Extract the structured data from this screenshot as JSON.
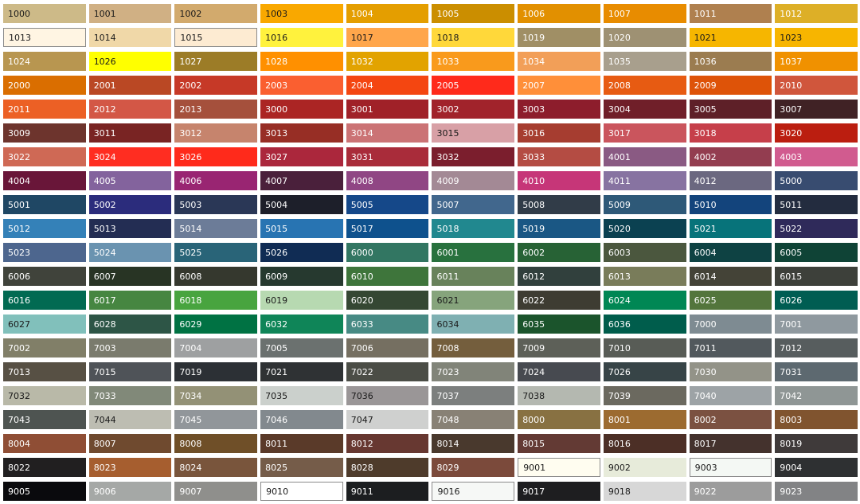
{
  "swatches": [
    {
      "code": "1000",
      "color": "#CDBA88",
      "text_color": "#1a1a1a"
    },
    {
      "code": "1001",
      "color": "#D0B084",
      "text_color": "#1a1a1a"
    },
    {
      "code": "1002",
      "color": "#D2AA6D",
      "text_color": "#1a1a1a"
    },
    {
      "code": "1003",
      "color": "#F9A800",
      "text_color": "#1a1a1a"
    },
    {
      "code": "1004",
      "color": "#E49E00",
      "text_color": "#ffffff"
    },
    {
      "code": "1005",
      "color": "#CB8E00",
      "text_color": "#ffffff"
    },
    {
      "code": "1006",
      "color": "#E29000",
      "text_color": "#ffffff"
    },
    {
      "code": "1007",
      "color": "#E88C00",
      "text_color": "#ffffff"
    },
    {
      "code": "1011",
      "color": "#AF804F",
      "text_color": "#ffffff"
    },
    {
      "code": "1012",
      "color": "#DDAF27",
      "text_color": "#ffffff"
    },
    {
      "code": "1013",
      "color": "#FFF5E3",
      "text_color": "#1a1a1a"
    },
    {
      "code": "1014",
      "color": "#F0D8A8",
      "text_color": "#1a1a1a"
    },
    {
      "code": "1015",
      "color": "#FDEBD2",
      "text_color": "#1a1a1a"
    },
    {
      "code": "1016",
      "color": "#FFF23D",
      "text_color": "#1a1a1a"
    },
    {
      "code": "1017",
      "color": "#FFA64B",
      "text_color": "#1a1a1a"
    },
    {
      "code": "1018",
      "color": "#FFD83A",
      "text_color": "#1a1a1a"
    },
    {
      "code": "1019",
      "color": "#A08F65",
      "text_color": "#ffffff"
    },
    {
      "code": "1020",
      "color": "#9E9173",
      "text_color": "#ffffff"
    },
    {
      "code": "1021",
      "color": "#F6B600",
      "text_color": "#1a1a1a"
    },
    {
      "code": "1023",
      "color": "#F7B500",
      "text_color": "#1a1a1a"
    },
    {
      "code": "1024",
      "color": "#B89650",
      "text_color": "#ffffff"
    },
    {
      "code": "1026",
      "color": "#FFFF00",
      "text_color": "#1a1a1a"
    },
    {
      "code": "1027",
      "color": "#9C7C27",
      "text_color": "#ffffff"
    },
    {
      "code": "1028",
      "color": "#FF9000",
      "text_color": "#ffffff"
    },
    {
      "code": "1032",
      "color": "#E2A300",
      "text_color": "#ffffff"
    },
    {
      "code": "1033",
      "color": "#F99A1C",
      "text_color": "#ffffff"
    },
    {
      "code": "1034",
      "color": "#F29F58",
      "text_color": "#ffffff"
    },
    {
      "code": "1035",
      "color": "#A89F8D",
      "text_color": "#ffffff"
    },
    {
      "code": "1036",
      "color": "#9B7C50",
      "text_color": "#ffffff"
    },
    {
      "code": "1037",
      "color": "#F09100",
      "text_color": "#ffffff"
    },
    {
      "code": "2000",
      "color": "#DA6E00",
      "text_color": "#ffffff"
    },
    {
      "code": "2001",
      "color": "#BA4824",
      "text_color": "#ffffff"
    },
    {
      "code": "2002",
      "color": "#C63927",
      "text_color": "#ffffff"
    },
    {
      "code": "2003",
      "color": "#FA5F30",
      "text_color": "#ffffff"
    },
    {
      "code": "2004",
      "color": "#F44611",
      "text_color": "#ffffff"
    },
    {
      "code": "2005",
      "color": "#FF2A1B",
      "text_color": "#ffffff"
    },
    {
      "code": "2007",
      "color": "#FF8F39",
      "text_color": "#ffffff"
    },
    {
      "code": "2008",
      "color": "#E75B12",
      "text_color": "#ffffff"
    },
    {
      "code": "2009",
      "color": "#DE5308",
      "text_color": "#ffffff"
    },
    {
      "code": "2010",
      "color": "#D0563C",
      "text_color": "#ffffff"
    },
    {
      "code": "2011",
      "color": "#EC6025",
      "text_color": "#ffffff"
    },
    {
      "code": "2012",
      "color": "#D35746",
      "text_color": "#ffffff"
    },
    {
      "code": "2013",
      "color": "#A5503C",
      "text_color": "#ffffff"
    },
    {
      "code": "3000",
      "color": "#AB2524",
      "text_color": "#ffffff"
    },
    {
      "code": "3001",
      "color": "#A02128",
      "text_color": "#ffffff"
    },
    {
      "code": "3002",
      "color": "#A1232B",
      "text_color": "#ffffff"
    },
    {
      "code": "3003",
      "color": "#8D1D2C",
      "text_color": "#ffffff"
    },
    {
      "code": "3004",
      "color": "#701F29",
      "text_color": "#ffffff"
    },
    {
      "code": "3005",
      "color": "#5E2028",
      "text_color": "#ffffff"
    },
    {
      "code": "3007",
      "color": "#402225",
      "text_color": "#ffffff"
    },
    {
      "code": "3009",
      "color": "#6D342D",
      "text_color": "#ffffff"
    },
    {
      "code": "3011",
      "color": "#792423",
      "text_color": "#ffffff"
    },
    {
      "code": "3012",
      "color": "#C6846D",
      "text_color": "#ffffff"
    },
    {
      "code": "3013",
      "color": "#972E25",
      "text_color": "#ffffff"
    },
    {
      "code": "3014",
      "color": "#CB7375",
      "text_color": "#ffffff"
    },
    {
      "code": "3015",
      "color": "#D8A0A6",
      "text_color": "#1a1a1a"
    },
    {
      "code": "3016",
      "color": "#A63D30",
      "text_color": "#ffffff"
    },
    {
      "code": "3017",
      "color": "#CA555D",
      "text_color": "#ffffff"
    },
    {
      "code": "3018",
      "color": "#C63F4A",
      "text_color": "#ffffff"
    },
    {
      "code": "3020",
      "color": "#BB1E10",
      "text_color": "#ffffff"
    },
    {
      "code": "3022",
      "color": "#CF6955",
      "text_color": "#ffffff"
    },
    {
      "code": "3024",
      "color": "#FF2D21",
      "text_color": "#ffffff"
    },
    {
      "code": "3026",
      "color": "#FF2A1B",
      "text_color": "#ffffff"
    },
    {
      "code": "3027",
      "color": "#AB273C",
      "text_color": "#ffffff"
    },
    {
      "code": "3031",
      "color": "#A92C3A",
      "text_color": "#ffffff"
    },
    {
      "code": "3032",
      "color": "#7B1E2D",
      "text_color": "#ffffff"
    },
    {
      "code": "3033",
      "color": "#B44C43",
      "text_color": "#ffffff"
    },
    {
      "code": "4001",
      "color": "#8A5A83",
      "text_color": "#ffffff"
    },
    {
      "code": "4002",
      "color": "#933D50",
      "text_color": "#ffffff"
    },
    {
      "code": "4003",
      "color": "#D15B8F",
      "text_color": "#ffffff"
    },
    {
      "code": "4004",
      "color": "#691639",
      "text_color": "#ffffff"
    },
    {
      "code": "4005",
      "color": "#83639D",
      "text_color": "#ffffff"
    },
    {
      "code": "4006",
      "color": "#992572",
      "text_color": "#ffffff"
    },
    {
      "code": "4007",
      "color": "#4A203B",
      "text_color": "#ffffff"
    },
    {
      "code": "4008",
      "color": "#904684",
      "text_color": "#ffffff"
    },
    {
      "code": "4009",
      "color": "#A38995",
      "text_color": "#ffffff"
    },
    {
      "code": "4010",
      "color": "#C63678",
      "text_color": "#ffffff"
    },
    {
      "code": "4011",
      "color": "#8773A1",
      "text_color": "#ffffff"
    },
    {
      "code": "4012",
      "color": "#6B6880",
      "text_color": "#ffffff"
    },
    {
      "code": "5000",
      "color": "#384C70",
      "text_color": "#ffffff"
    },
    {
      "code": "5001",
      "color": "#1F4764",
      "text_color": "#ffffff"
    },
    {
      "code": "5002",
      "color": "#2B2C7C",
      "text_color": "#ffffff"
    },
    {
      "code": "5003",
      "color": "#2A3756",
      "text_color": "#ffffff"
    },
    {
      "code": "5004",
      "color": "#1D1F2A",
      "text_color": "#ffffff"
    },
    {
      "code": "5005",
      "color": "#154889",
      "text_color": "#ffffff"
    },
    {
      "code": "5007",
      "color": "#41678D",
      "text_color": "#ffffff"
    },
    {
      "code": "5008",
      "color": "#313C48",
      "text_color": "#ffffff"
    },
    {
      "code": "5009",
      "color": "#2E5978",
      "text_color": "#ffffff"
    },
    {
      "code": "5010",
      "color": "#13447C",
      "text_color": "#ffffff"
    },
    {
      "code": "5011",
      "color": "#232C3F",
      "text_color": "#ffffff"
    },
    {
      "code": "5012",
      "color": "#3481B8",
      "text_color": "#ffffff"
    },
    {
      "code": "5013",
      "color": "#232D53",
      "text_color": "#ffffff"
    },
    {
      "code": "5014",
      "color": "#6C7C98",
      "text_color": "#ffffff"
    },
    {
      "code": "5015",
      "color": "#2874B2",
      "text_color": "#ffffff"
    },
    {
      "code": "5017",
      "color": "#0E518D",
      "text_color": "#ffffff"
    },
    {
      "code": "5018",
      "color": "#21888F",
      "text_color": "#ffffff"
    },
    {
      "code": "5019",
      "color": "#1A5784",
      "text_color": "#ffffff"
    },
    {
      "code": "5020",
      "color": "#0B4151",
      "text_color": "#ffffff"
    },
    {
      "code": "5021",
      "color": "#07737A",
      "text_color": "#ffffff"
    },
    {
      "code": "5022",
      "color": "#2F2A5A",
      "text_color": "#ffffff"
    },
    {
      "code": "5023",
      "color": "#4D668E",
      "text_color": "#ffffff"
    },
    {
      "code": "5024",
      "color": "#6A93B0",
      "text_color": "#ffffff"
    },
    {
      "code": "5025",
      "color": "#296478",
      "text_color": "#ffffff"
    },
    {
      "code": "5026",
      "color": "#102C54",
      "text_color": "#ffffff"
    },
    {
      "code": "6000",
      "color": "#327662",
      "text_color": "#ffffff"
    },
    {
      "code": "6001",
      "color": "#28713E",
      "text_color": "#ffffff"
    },
    {
      "code": "6002",
      "color": "#276235",
      "text_color": "#ffffff"
    },
    {
      "code": "6003",
      "color": "#4B573E",
      "text_color": "#ffffff"
    },
    {
      "code": "6004",
      "color": "#0E4243",
      "text_color": "#ffffff"
    },
    {
      "code": "6005",
      "color": "#0F4336",
      "text_color": "#ffffff"
    },
    {
      "code": "6006",
      "color": "#40433B",
      "text_color": "#ffffff"
    },
    {
      "code": "6007",
      "color": "#283424",
      "text_color": "#ffffff"
    },
    {
      "code": "6008",
      "color": "#35382E",
      "text_color": "#ffffff"
    },
    {
      "code": "6009",
      "color": "#26392F",
      "text_color": "#ffffff"
    },
    {
      "code": "6010",
      "color": "#3E753B",
      "text_color": "#ffffff"
    },
    {
      "code": "6011",
      "color": "#68825B",
      "text_color": "#ffffff"
    },
    {
      "code": "6012",
      "color": "#31403D",
      "text_color": "#ffffff"
    },
    {
      "code": "6013",
      "color": "#797C5A",
      "text_color": "#ffffff"
    },
    {
      "code": "6014",
      "color": "#444337",
      "text_color": "#ffffff"
    },
    {
      "code": "6015",
      "color": "#3D403A",
      "text_color": "#ffffff"
    },
    {
      "code": "6016",
      "color": "#026A52",
      "text_color": "#ffffff"
    },
    {
      "code": "6017",
      "color": "#468641",
      "text_color": "#ffffff"
    },
    {
      "code": "6018",
      "color": "#48A43F",
      "text_color": "#ffffff"
    },
    {
      "code": "6019",
      "color": "#B7D9B1",
      "text_color": "#1a1a1a"
    },
    {
      "code": "6020",
      "color": "#354733",
      "text_color": "#ffffff"
    },
    {
      "code": "6021",
      "color": "#86A47C",
      "text_color": "#1a1a1a"
    },
    {
      "code": "6022",
      "color": "#3E3C32",
      "text_color": "#ffffff"
    },
    {
      "code": "6024",
      "color": "#008754",
      "text_color": "#ffffff"
    },
    {
      "code": "6025",
      "color": "#53753C",
      "text_color": "#ffffff"
    },
    {
      "code": "6026",
      "color": "#005D52",
      "text_color": "#ffffff"
    },
    {
      "code": "6027",
      "color": "#81C0BB",
      "text_color": "#1a1a1a"
    },
    {
      "code": "6028",
      "color": "#2D5546",
      "text_color": "#ffffff"
    },
    {
      "code": "6029",
      "color": "#007243",
      "text_color": "#ffffff"
    },
    {
      "code": "6032",
      "color": "#0F8558",
      "text_color": "#ffffff"
    },
    {
      "code": "6033",
      "color": "#478A84",
      "text_color": "#ffffff"
    },
    {
      "code": "6034",
      "color": "#7FB0B2",
      "text_color": "#1a1a1a"
    },
    {
      "code": "6035",
      "color": "#1B542C",
      "text_color": "#ffffff"
    },
    {
      "code": "6036",
      "color": "#005D4C",
      "text_color": "#ffffff"
    },
    {
      "code": "7000",
      "color": "#7E8B92",
      "text_color": "#ffffff"
    },
    {
      "code": "7001",
      "color": "#8F999F",
      "text_color": "#ffffff"
    },
    {
      "code": "7002",
      "color": "#817F68",
      "text_color": "#ffffff"
    },
    {
      "code": "7003",
      "color": "#7A7B6D",
      "text_color": "#ffffff"
    },
    {
      "code": "7004",
      "color": "#9EA0A1",
      "text_color": "#ffffff"
    },
    {
      "code": "7005",
      "color": "#6B716F",
      "text_color": "#ffffff"
    },
    {
      "code": "7006",
      "color": "#756F61",
      "text_color": "#ffffff"
    },
    {
      "code": "7008",
      "color": "#745E3D",
      "text_color": "#ffffff"
    },
    {
      "code": "7009",
      "color": "#5D6058",
      "text_color": "#ffffff"
    },
    {
      "code": "7010",
      "color": "#585C56",
      "text_color": "#ffffff"
    },
    {
      "code": "7011",
      "color": "#52595D",
      "text_color": "#ffffff"
    },
    {
      "code": "7012",
      "color": "#575D5E",
      "text_color": "#ffffff"
    },
    {
      "code": "7013",
      "color": "#575044",
      "text_color": "#ffffff"
    },
    {
      "code": "7015",
      "color": "#4F5358",
      "text_color": "#ffffff"
    },
    {
      "code": "7019",
      "color": "#2C3035",
      "text_color": "#ffffff"
    },
    {
      "code": "7021",
      "color": "#2F3234",
      "text_color": "#ffffff"
    },
    {
      "code": "7022",
      "color": "#4B4D46",
      "text_color": "#ffffff"
    },
    {
      "code": "7023",
      "color": "#818479",
      "text_color": "#ffffff"
    },
    {
      "code": "7024",
      "color": "#474A50",
      "text_color": "#ffffff"
    },
    {
      "code": "7026",
      "color": "#374447",
      "text_color": "#ffffff"
    },
    {
      "code": "7030",
      "color": "#939388",
      "text_color": "#ffffff"
    },
    {
      "code": "7031",
      "color": "#5D6970",
      "text_color": "#ffffff"
    },
    {
      "code": "7032",
      "color": "#B9B9A8",
      "text_color": "#1a1a1a"
    },
    {
      "code": "7033",
      "color": "#818979",
      "text_color": "#ffffff"
    },
    {
      "code": "7034",
      "color": "#939176",
      "text_color": "#ffffff"
    },
    {
      "code": "7035",
      "color": "#CBD0CC",
      "text_color": "#1a1a1a"
    },
    {
      "code": "7036",
      "color": "#9A9697",
      "text_color": "#1a1a1a"
    },
    {
      "code": "7037",
      "color": "#7C7F7E",
      "text_color": "#ffffff"
    },
    {
      "code": "7038",
      "color": "#B4B8B0",
      "text_color": "#1a1a1a"
    },
    {
      "code": "7039",
      "color": "#6B695F",
      "text_color": "#ffffff"
    },
    {
      "code": "7040",
      "color": "#9DA3A6",
      "text_color": "#ffffff"
    },
    {
      "code": "7042",
      "color": "#8F9695",
      "text_color": "#ffffff"
    },
    {
      "code": "7043",
      "color": "#4E5451",
      "text_color": "#ffffff"
    },
    {
      "code": "7044",
      "color": "#BDBDB2",
      "text_color": "#1a1a1a"
    },
    {
      "code": "7045",
      "color": "#91969A",
      "text_color": "#ffffff"
    },
    {
      "code": "7046",
      "color": "#82898E",
      "text_color": "#ffffff"
    },
    {
      "code": "7047",
      "color": "#CFD0CF",
      "text_color": "#1a1a1a"
    },
    {
      "code": "7048",
      "color": "#888175",
      "text_color": "#ffffff"
    },
    {
      "code": "8000",
      "color": "#887142",
      "text_color": "#ffffff"
    },
    {
      "code": "8001",
      "color": "#9C6B30",
      "text_color": "#ffffff"
    },
    {
      "code": "8002",
      "color": "#7B5141",
      "text_color": "#ffffff"
    },
    {
      "code": "8003",
      "color": "#80542F",
      "text_color": "#ffffff"
    },
    {
      "code": "8004",
      "color": "#8F4E35",
      "text_color": "#ffffff"
    },
    {
      "code": "8007",
      "color": "#6F4A2F",
      "text_color": "#ffffff"
    },
    {
      "code": "8008",
      "color": "#6F4F28",
      "text_color": "#ffffff"
    },
    {
      "code": "8011",
      "color": "#5A3A29",
      "text_color": "#ffffff"
    },
    {
      "code": "8012",
      "color": "#673831",
      "text_color": "#ffffff"
    },
    {
      "code": "8014",
      "color": "#49392D",
      "text_color": "#ffffff"
    },
    {
      "code": "8015",
      "color": "#633A34",
      "text_color": "#ffffff"
    },
    {
      "code": "8016",
      "color": "#4C2F26",
      "text_color": "#ffffff"
    },
    {
      "code": "8017",
      "color": "#44322D",
      "text_color": "#ffffff"
    },
    {
      "code": "8019",
      "color": "#3F3A3A",
      "text_color": "#ffffff"
    },
    {
      "code": "8022",
      "color": "#211F20",
      "text_color": "#ffffff"
    },
    {
      "code": "8023",
      "color": "#A65E2F",
      "text_color": "#ffffff"
    },
    {
      "code": "8024",
      "color": "#79553C",
      "text_color": "#ffffff"
    },
    {
      "code": "8025",
      "color": "#755C49",
      "text_color": "#ffffff"
    },
    {
      "code": "8028",
      "color": "#4E3B2B",
      "text_color": "#ffffff"
    },
    {
      "code": "8029",
      "color": "#7B4A3B",
      "text_color": "#ffffff"
    },
    {
      "code": "9001",
      "color": "#FFFDF0",
      "text_color": "#1a1a1a"
    },
    {
      "code": "9002",
      "color": "#E7EBDA",
      "text_color": "#1a1a1a"
    },
    {
      "code": "9003",
      "color": "#F4F8F4",
      "text_color": "#1a1a1a"
    },
    {
      "code": "9004",
      "color": "#2E3032",
      "text_color": "#ffffff"
    },
    {
      "code": "9005",
      "color": "#0A0A0D",
      "text_color": "#ffffff"
    },
    {
      "code": "9006",
      "color": "#A5A8A6",
      "text_color": "#ffffff"
    },
    {
      "code": "9007",
      "color": "#8F8F8C",
      "text_color": "#ffffff"
    },
    {
      "code": "9010",
      "color": "#FFFFFF",
      "text_color": "#1a1a1a"
    },
    {
      "code": "9011",
      "color": "#1C1E20",
      "text_color": "#ffffff"
    },
    {
      "code": "9016",
      "color": "#F6F8F6",
      "text_color": "#1a1a1a"
    },
    {
      "code": "9017",
      "color": "#1E1E20",
      "text_color": "#ffffff"
    },
    {
      "code": "9018",
      "color": "#D7D7D7",
      "text_color": "#1a1a1a"
    },
    {
      "code": "9022",
      "color": "#9C9C9C",
      "text_color": "#ffffff"
    },
    {
      "code": "9023",
      "color": "#828385",
      "text_color": "#ffffff"
    }
  ]
}
